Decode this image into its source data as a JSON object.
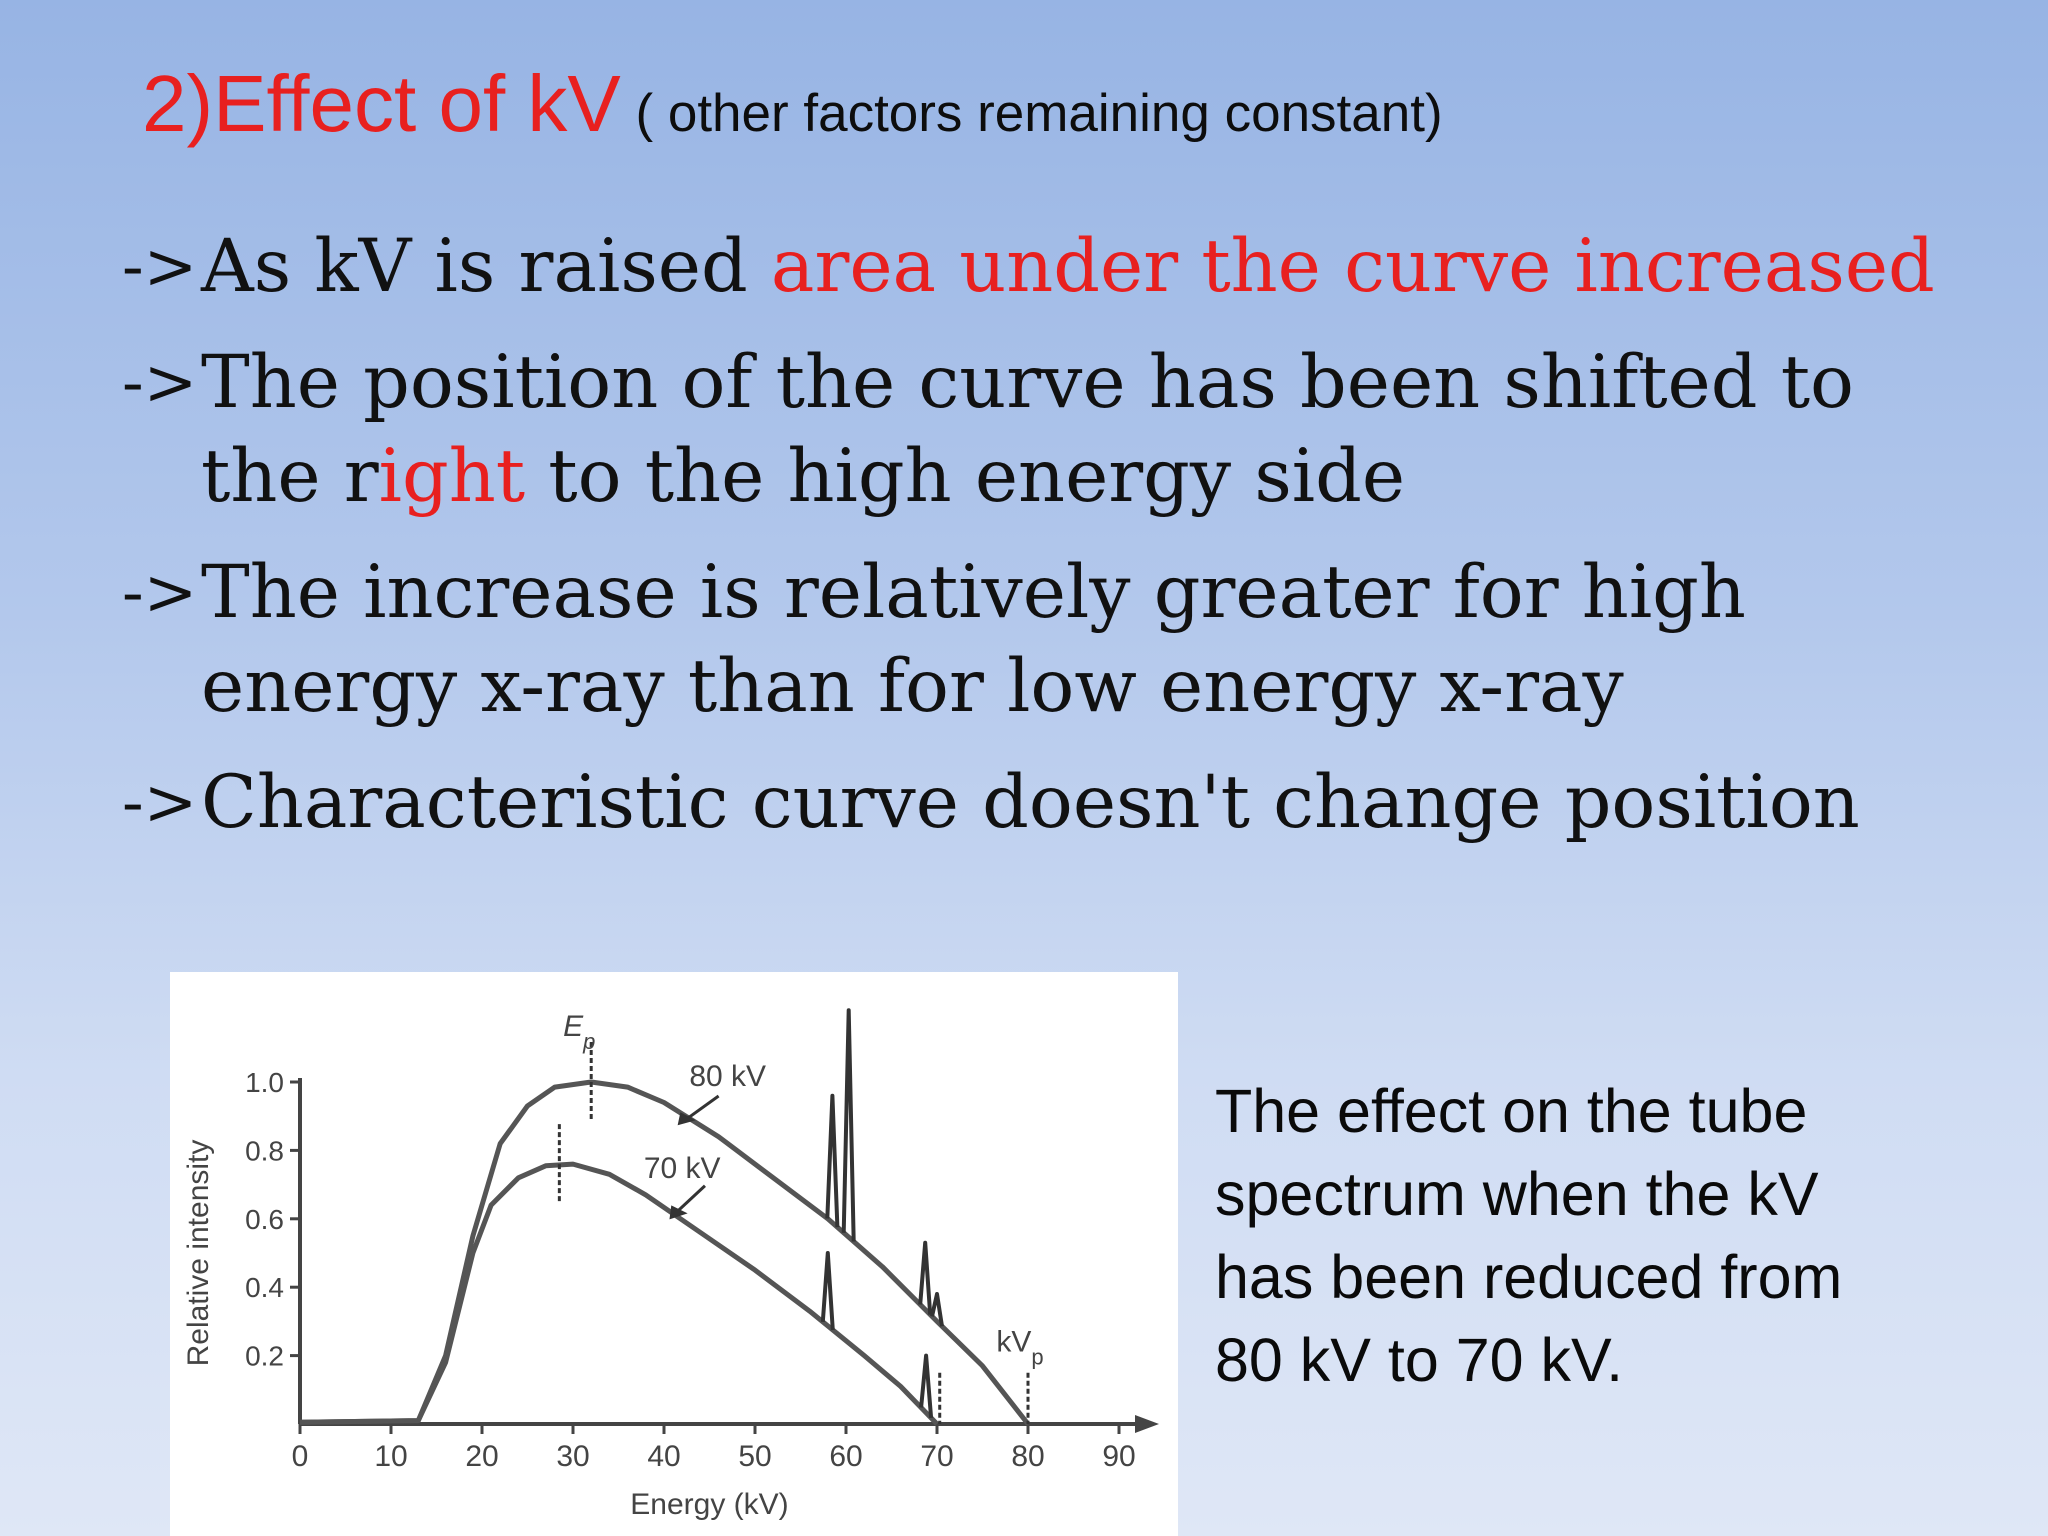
{
  "title": {
    "main": "2)Effect of kV",
    "sub": " ( other factors remaining constant)"
  },
  "bullets": [
    {
      "arrow": "->",
      "lines": [
        [
          {
            "text": "As kV is raised ",
            "color": "#111111"
          },
          {
            "text": "area under the curve increased",
            "color": "#e8201f"
          }
        ]
      ]
    },
    {
      "arrow": "->",
      "lines": [
        [
          {
            "text": "The position of the curve has been shifted to",
            "color": "#111111"
          }
        ],
        [
          {
            "text": "the r",
            "color": "#111111"
          },
          {
            "text": "ight",
            "color": "#e8201f"
          },
          {
            "text": " to the high energy side",
            "color": "#111111"
          }
        ]
      ]
    },
    {
      "arrow": "->",
      "lines": [
        [
          {
            "text": "The increase is relatively greater for high",
            "color": "#111111"
          }
        ],
        [
          {
            "text": "energy x-ray than for low energy x-ray",
            "color": "#111111"
          }
        ]
      ]
    },
    {
      "arrow": "->",
      "lines": [
        [
          {
            "text": "Characteristic curve doesn't change position",
            "color": "#111111"
          }
        ]
      ]
    }
  ],
  "caption": "The effect on the tube spectrum when the kV has been reduced from 80 kV to 70 kV.",
  "chart_data": {
    "type": "line",
    "xlabel": "Energy (kV)",
    "ylabel": "Relative intensity",
    "xlim": [
      0,
      90
    ],
    "ylim": [
      0,
      1.0
    ],
    "xticks": [
      0,
      10,
      20,
      30,
      40,
      50,
      60,
      70,
      80,
      90
    ],
    "yticks": [
      0.2,
      0.4,
      0.6,
      0.8,
      1.0
    ],
    "ytick_labels": [
      "0.2",
      "0.4",
      "0.6",
      "0.8",
      "1.0"
    ],
    "series": [
      {
        "name": "80 kV",
        "points": [
          [
            0,
            0.005
          ],
          [
            13,
            0.01
          ],
          [
            16,
            0.2
          ],
          [
            19,
            0.55
          ],
          [
            22,
            0.82
          ],
          [
            25,
            0.93
          ],
          [
            28,
            0.985
          ],
          [
            32,
            1.0
          ],
          [
            36,
            0.985
          ],
          [
            40,
            0.94
          ],
          [
            46,
            0.84
          ],
          [
            52,
            0.72
          ],
          [
            58,
            0.6
          ],
          [
            64,
            0.46
          ],
          [
            70,
            0.3
          ],
          [
            75,
            0.17
          ],
          [
            80,
            0.0
          ]
        ]
      },
      {
        "name": "70 kV",
        "points": [
          [
            0,
            0.005
          ],
          [
            13,
            0.01
          ],
          [
            16,
            0.18
          ],
          [
            19,
            0.5
          ],
          [
            21,
            0.64
          ],
          [
            24,
            0.72
          ],
          [
            27,
            0.755
          ],
          [
            30,
            0.76
          ],
          [
            34,
            0.73
          ],
          [
            38,
            0.67
          ],
          [
            44,
            0.56
          ],
          [
            50,
            0.45
          ],
          [
            56,
            0.33
          ],
          [
            62,
            0.2
          ],
          [
            66,
            0.11
          ],
          [
            70,
            0.0
          ]
        ]
      }
    ],
    "characteristic_peaks": {
      "80 kV": [
        {
          "x": 58.5,
          "y": 0.96
        },
        {
          "x": 60.3,
          "y": 1.21
        },
        {
          "x": 68.7,
          "y": 0.53
        },
        {
          "x": 70.0,
          "y": 0.38
        }
      ],
      "70 kV": [
        {
          "x": 58.0,
          "y": 0.5
        },
        {
          "x": 68.8,
          "y": 0.2
        }
      ]
    },
    "annotations": [
      {
        "text": "Ep",
        "sub": "p",
        "x": 32,
        "y": 1.0
      },
      {
        "text": "kVp",
        "sub": "p",
        "x": 80,
        "y": 0.0
      }
    ]
  }
}
